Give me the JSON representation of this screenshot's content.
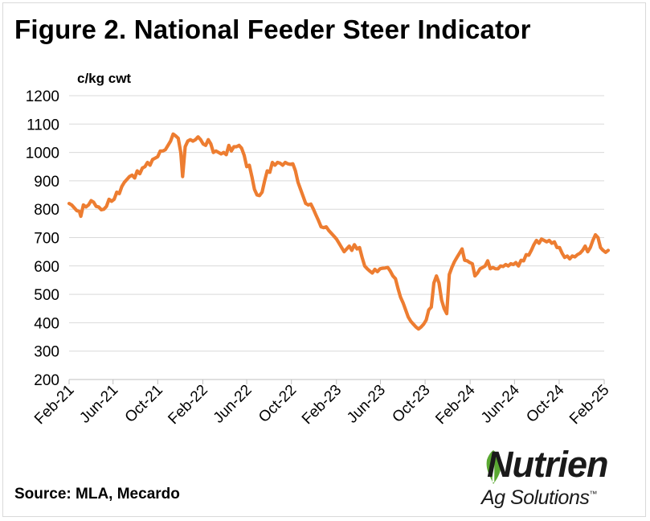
{
  "title": "Figure 2. National Feeder Steer Indicator",
  "source": "Source: MLA, Mecardo",
  "logo": {
    "word": "Nutrien",
    "sub": "Ag Solutions",
    "tm": "™"
  },
  "colors": {
    "line": "#ED7D31",
    "grid": "#d9d9d9",
    "axis": "#bfbfbf",
    "logo_green": "#5AA832"
  },
  "chart_data": {
    "type": "line",
    "title": "Figure 2. National Feeder Steer Indicator",
    "ylabel": "c/kg cwt",
    "ylim": [
      200,
      1200
    ],
    "yticks": [
      200,
      300,
      400,
      500,
      600,
      700,
      800,
      900,
      1000,
      1100,
      1200
    ],
    "xticks": [
      "Feb-21",
      "Jun-21",
      "Oct-21",
      "Feb-22",
      "Jun-22",
      "Oct-22",
      "Feb-23",
      "Jun-23",
      "Oct-23",
      "Feb-24",
      "Jun-24",
      "Oct-24",
      "Feb-25"
    ],
    "grid": true,
    "series": [
      {
        "points": [
          [
            "2021-02-01",
            820
          ],
          [
            "2021-02-08",
            815
          ],
          [
            "2021-02-15",
            805
          ],
          [
            "2021-02-22",
            795
          ],
          [
            "2021-03-01",
            792
          ],
          [
            "2021-03-05",
            775
          ],
          [
            "2021-03-12",
            815
          ],
          [
            "2021-03-19",
            808
          ],
          [
            "2021-03-26",
            815
          ],
          [
            "2021-04-02",
            830
          ],
          [
            "2021-04-09",
            825
          ],
          [
            "2021-04-16",
            810
          ],
          [
            "2021-04-23",
            808
          ],
          [
            "2021-04-30",
            798
          ],
          [
            "2021-05-07",
            800
          ],
          [
            "2021-05-14",
            810
          ],
          [
            "2021-05-21",
            835
          ],
          [
            "2021-05-28",
            828
          ],
          [
            "2021-06-04",
            835
          ],
          [
            "2021-06-11",
            860
          ],
          [
            "2021-06-18",
            855
          ],
          [
            "2021-06-25",
            880
          ],
          [
            "2021-07-02",
            895
          ],
          [
            "2021-07-09",
            905
          ],
          [
            "2021-07-16",
            915
          ],
          [
            "2021-07-23",
            920
          ],
          [
            "2021-07-30",
            910
          ],
          [
            "2021-08-06",
            935
          ],
          [
            "2021-08-13",
            925
          ],
          [
            "2021-08-20",
            945
          ],
          [
            "2021-08-27",
            950
          ],
          [
            "2021-09-03",
            965
          ],
          [
            "2021-09-10",
            955
          ],
          [
            "2021-09-17",
            975
          ],
          [
            "2021-09-24",
            980
          ],
          [
            "2021-10-01",
            985
          ],
          [
            "2021-10-08",
            1005
          ],
          [
            "2021-10-15",
            1005
          ],
          [
            "2021-10-22",
            1010
          ],
          [
            "2021-10-29",
            1025
          ],
          [
            "2021-11-05",
            1040
          ],
          [
            "2021-11-12",
            1065
          ],
          [
            "2021-11-19",
            1058
          ],
          [
            "2021-11-26",
            1050
          ],
          [
            "2021-12-03",
            1000
          ],
          [
            "2021-12-08",
            915
          ],
          [
            "2021-12-15",
            1020
          ],
          [
            "2021-12-22",
            1040
          ],
          [
            "2021-12-29",
            1045
          ],
          [
            "2022-01-05",
            1040
          ],
          [
            "2022-01-12",
            1045
          ],
          [
            "2022-01-19",
            1055
          ],
          [
            "2022-01-26",
            1045
          ],
          [
            "2022-02-02",
            1030
          ],
          [
            "2022-02-09",
            1025
          ],
          [
            "2022-02-16",
            1045
          ],
          [
            "2022-02-23",
            1030
          ],
          [
            "2022-03-02",
            1000
          ],
          [
            "2022-03-09",
            1005
          ],
          [
            "2022-03-16",
            1000
          ],
          [
            "2022-03-23",
            995
          ],
          [
            "2022-03-30",
            1000
          ],
          [
            "2022-04-06",
            992
          ],
          [
            "2022-04-13",
            1025
          ],
          [
            "2022-04-20",
            1005
          ],
          [
            "2022-04-27",
            1020
          ],
          [
            "2022-05-04",
            1020
          ],
          [
            "2022-05-11",
            1025
          ],
          [
            "2022-05-18",
            1015
          ],
          [
            "2022-05-25",
            990
          ],
          [
            "2022-06-01",
            950
          ],
          [
            "2022-06-08",
            955
          ],
          [
            "2022-06-15",
            915
          ],
          [
            "2022-06-22",
            870
          ],
          [
            "2022-06-29",
            850
          ],
          [
            "2022-07-06",
            848
          ],
          [
            "2022-07-13",
            860
          ],
          [
            "2022-07-20",
            900
          ],
          [
            "2022-07-27",
            935
          ],
          [
            "2022-08-03",
            930
          ],
          [
            "2022-08-10",
            965
          ],
          [
            "2022-08-17",
            955
          ],
          [
            "2022-08-24",
            965
          ],
          [
            "2022-08-31",
            962
          ],
          [
            "2022-09-07",
            955
          ],
          [
            "2022-09-14",
            965
          ],
          [
            "2022-09-21",
            960
          ],
          [
            "2022-09-28",
            958
          ],
          [
            "2022-10-05",
            960
          ],
          [
            "2022-10-12",
            935
          ],
          [
            "2022-10-19",
            895
          ],
          [
            "2022-10-26",
            870
          ],
          [
            "2022-11-02",
            845
          ],
          [
            "2022-11-09",
            820
          ],
          [
            "2022-11-16",
            815
          ],
          [
            "2022-11-23",
            818
          ],
          [
            "2022-11-30",
            800
          ],
          [
            "2022-12-07",
            780
          ],
          [
            "2022-12-14",
            760
          ],
          [
            "2022-12-21",
            738
          ],
          [
            "2022-12-28",
            735
          ],
          [
            "2023-01-04",
            738
          ],
          [
            "2023-01-11",
            725
          ],
          [
            "2023-01-18",
            715
          ],
          [
            "2023-01-25",
            705
          ],
          [
            "2023-02-01",
            695
          ],
          [
            "2023-02-08",
            680
          ],
          [
            "2023-02-15",
            665
          ],
          [
            "2023-02-22",
            650
          ],
          [
            "2023-03-01",
            660
          ],
          [
            "2023-03-08",
            670
          ],
          [
            "2023-03-15",
            655
          ],
          [
            "2023-03-22",
            675
          ],
          [
            "2023-03-29",
            660
          ],
          [
            "2023-04-05",
            665
          ],
          [
            "2023-04-12",
            630
          ],
          [
            "2023-04-19",
            600
          ],
          [
            "2023-04-26",
            590
          ],
          [
            "2023-05-03",
            582
          ],
          [
            "2023-05-10",
            575
          ],
          [
            "2023-05-17",
            588
          ],
          [
            "2023-05-24",
            580
          ],
          [
            "2023-05-31",
            590
          ],
          [
            "2023-06-07",
            592
          ],
          [
            "2023-06-14",
            593
          ],
          [
            "2023-06-21",
            595
          ],
          [
            "2023-06-28",
            582
          ],
          [
            "2023-07-05",
            565
          ],
          [
            "2023-07-12",
            555
          ],
          [
            "2023-07-19",
            520
          ],
          [
            "2023-07-26",
            490
          ],
          [
            "2023-08-02",
            470
          ],
          [
            "2023-08-09",
            445
          ],
          [
            "2023-08-16",
            420
          ],
          [
            "2023-08-23",
            405
          ],
          [
            "2023-08-30",
            395
          ],
          [
            "2023-09-06",
            385
          ],
          [
            "2023-09-13",
            378
          ],
          [
            "2023-09-20",
            385
          ],
          [
            "2023-09-27",
            395
          ],
          [
            "2023-10-04",
            410
          ],
          [
            "2023-10-11",
            445
          ],
          [
            "2023-10-18",
            455
          ],
          [
            "2023-10-25",
            540
          ],
          [
            "2023-11-01",
            565
          ],
          [
            "2023-11-08",
            540
          ],
          [
            "2023-11-15",
            480
          ],
          [
            "2023-11-22",
            450
          ],
          [
            "2023-11-29",
            432
          ],
          [
            "2023-12-06",
            570
          ],
          [
            "2023-12-13",
            595
          ],
          [
            "2023-12-20",
            615
          ],
          [
            "2023-12-27",
            630
          ],
          [
            "2024-01-03",
            645
          ],
          [
            "2024-01-10",
            660
          ],
          [
            "2024-01-17",
            620
          ],
          [
            "2024-01-24",
            618
          ],
          [
            "2024-01-31",
            612
          ],
          [
            "2024-02-07",
            608
          ],
          [
            "2024-02-14",
            565
          ],
          [
            "2024-02-21",
            575
          ],
          [
            "2024-02-28",
            590
          ],
          [
            "2024-03-06",
            595
          ],
          [
            "2024-03-13",
            600
          ],
          [
            "2024-03-20",
            618
          ],
          [
            "2024-03-27",
            590
          ],
          [
            "2024-04-03",
            595
          ],
          [
            "2024-04-10",
            590
          ],
          [
            "2024-04-17",
            590
          ],
          [
            "2024-04-24",
            600
          ],
          [
            "2024-05-01",
            598
          ],
          [
            "2024-05-08",
            605
          ],
          [
            "2024-05-15",
            600
          ],
          [
            "2024-05-22",
            608
          ],
          [
            "2024-05-29",
            605
          ],
          [
            "2024-06-05",
            612
          ],
          [
            "2024-06-12",
            600
          ],
          [
            "2024-06-19",
            620
          ],
          [
            "2024-06-26",
            618
          ],
          [
            "2024-07-03",
            640
          ],
          [
            "2024-07-10",
            638
          ],
          [
            "2024-07-17",
            655
          ],
          [
            "2024-07-24",
            675
          ],
          [
            "2024-07-31",
            690
          ],
          [
            "2024-08-07",
            680
          ],
          [
            "2024-08-14",
            695
          ],
          [
            "2024-08-21",
            690
          ],
          [
            "2024-08-28",
            685
          ],
          [
            "2024-09-04",
            690
          ],
          [
            "2024-09-11",
            680
          ],
          [
            "2024-09-18",
            685
          ],
          [
            "2024-09-25",
            665
          ],
          [
            "2024-10-02",
            665
          ],
          [
            "2024-10-09",
            645
          ],
          [
            "2024-10-16",
            630
          ],
          [
            "2024-10-23",
            635
          ],
          [
            "2024-10-30",
            625
          ],
          [
            "2024-11-06",
            635
          ],
          [
            "2024-11-13",
            632
          ],
          [
            "2024-11-20",
            640
          ],
          [
            "2024-11-27",
            645
          ],
          [
            "2024-12-04",
            655
          ],
          [
            "2024-12-11",
            670
          ],
          [
            "2024-12-18",
            650
          ],
          [
            "2024-12-25",
            665
          ],
          [
            "2025-01-01",
            690
          ],
          [
            "2025-01-08",
            710
          ],
          [
            "2025-01-15",
            700
          ],
          [
            "2025-01-22",
            665
          ],
          [
            "2025-01-29",
            655
          ],
          [
            "2025-02-05",
            648
          ],
          [
            "2025-02-12",
            655
          ]
        ]
      }
    ]
  }
}
